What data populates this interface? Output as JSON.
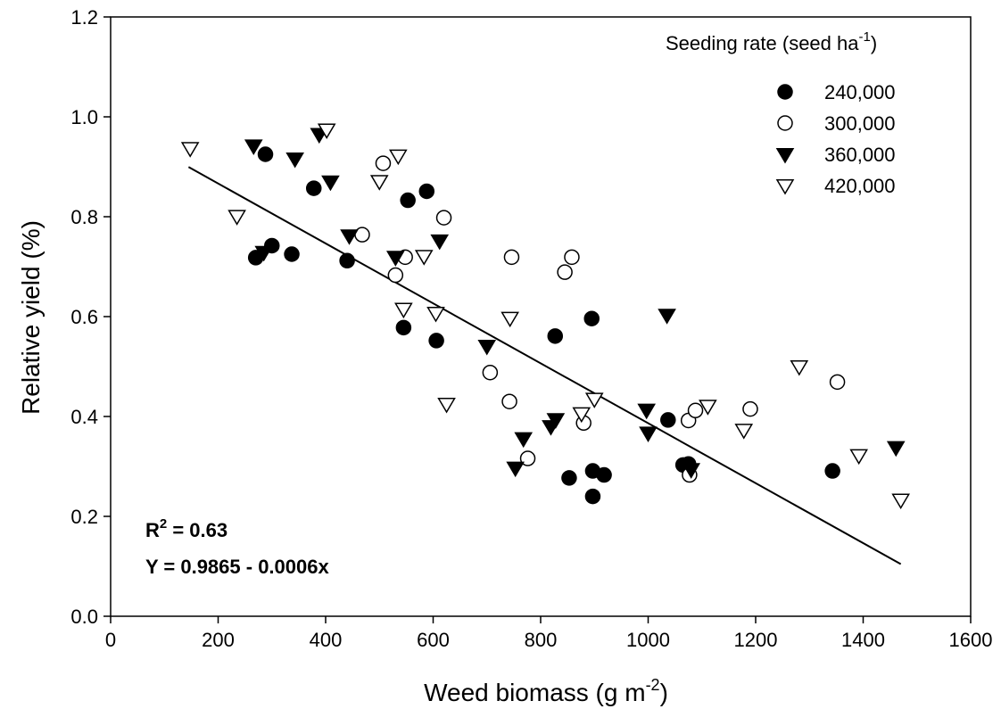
{
  "chart_data": {
    "type": "scatter",
    "xlabel": "Weed biomass (g m",
    "xlabel_sup": "-2",
    "xlabel_end": ")",
    "ylabel": "Relative yield (%)",
    "xlim": [
      0,
      1600
    ],
    "ylim": [
      0.0,
      1.2
    ],
    "x_ticks": [
      0,
      200,
      400,
      600,
      800,
      1000,
      1200,
      1400,
      1600
    ],
    "x_tick_labels": [
      "0",
      "200",
      "400",
      "600",
      "800",
      "1000",
      "1200",
      "1400",
      "1600"
    ],
    "y_ticks": [
      0.0,
      0.2,
      0.4,
      0.6,
      0.8,
      1.0,
      1.2
    ],
    "y_tick_labels": [
      "0.0",
      "0.2",
      "0.4",
      "0.6",
      "0.8",
      "1.0",
      "1.2"
    ],
    "grid": false,
    "legend_position": "top-right",
    "legend_title": "Seeding rate (seed ha",
    "legend_title_sup": "-1",
    "legend_title_end": ")",
    "series": [
      {
        "name": "240,000",
        "marker": "filled-circle",
        "x": [
          270,
          288,
          300,
          337,
          378,
          440,
          545,
          553,
          588,
          606,
          827,
          853,
          895,
          897,
          897,
          918,
          1037,
          1065,
          1075,
          1343
        ],
        "y": [
          0.718,
          0.925,
          0.742,
          0.725,
          0.857,
          0.712,
          0.578,
          0.833,
          0.851,
          0.552,
          0.561,
          0.277,
          0.596,
          0.291,
          0.24,
          0.283,
          0.393,
          0.303,
          0.305,
          0.291
        ]
      },
      {
        "name": "300,000",
        "marker": "open-circle",
        "x": [
          468,
          507,
          530,
          548,
          620,
          706,
          742,
          746,
          776,
          845,
          858,
          880,
          1075,
          1077,
          1088,
          1190,
          1352
        ],
        "y": [
          0.764,
          0.907,
          0.683,
          0.719,
          0.798,
          0.488,
          0.43,
          0.719,
          0.316,
          0.689,
          0.719,
          0.387,
          0.392,
          0.283,
          0.412,
          0.415,
          0.469
        ]
      },
      {
        "name": "360,000",
        "marker": "filled-triangle-down",
        "x": [
          266,
          285,
          343,
          388,
          409,
          444,
          530,
          612,
          700,
          753,
          768,
          819,
          828,
          997,
          1000,
          1035,
          1080,
          1461
        ],
        "y": [
          0.942,
          0.729,
          0.916,
          0.965,
          0.87,
          0.762,
          0.719,
          0.752,
          0.541,
          0.297,
          0.356,
          0.38,
          0.394,
          0.413,
          0.367,
          0.603,
          0.294,
          0.338
        ]
      },
      {
        "name": "420,000",
        "marker": "open-triangle-down",
        "x": [
          148,
          235,
          402,
          500,
          535,
          545,
          583,
          605,
          625,
          743,
          876,
          900,
          1111,
          1178,
          1281,
          1392,
          1470
        ],
        "y": [
          0.937,
          0.801,
          0.974,
          0.871,
          0.922,
          0.615,
          0.721,
          0.607,
          0.425,
          0.597,
          0.406,
          0.435,
          0.421,
          0.373,
          0.5,
          0.322,
          0.233
        ]
      }
    ],
    "regression": {
      "intercept": 0.9865,
      "slope": -0.0006,
      "x_range": [
        145,
        1470
      ]
    },
    "annotations": {
      "r2_prefix": "R",
      "r2_sup": "2",
      "r2_rest": " = 0.63",
      "equation": "Y = 0.9865 - 0.0006x"
    }
  }
}
